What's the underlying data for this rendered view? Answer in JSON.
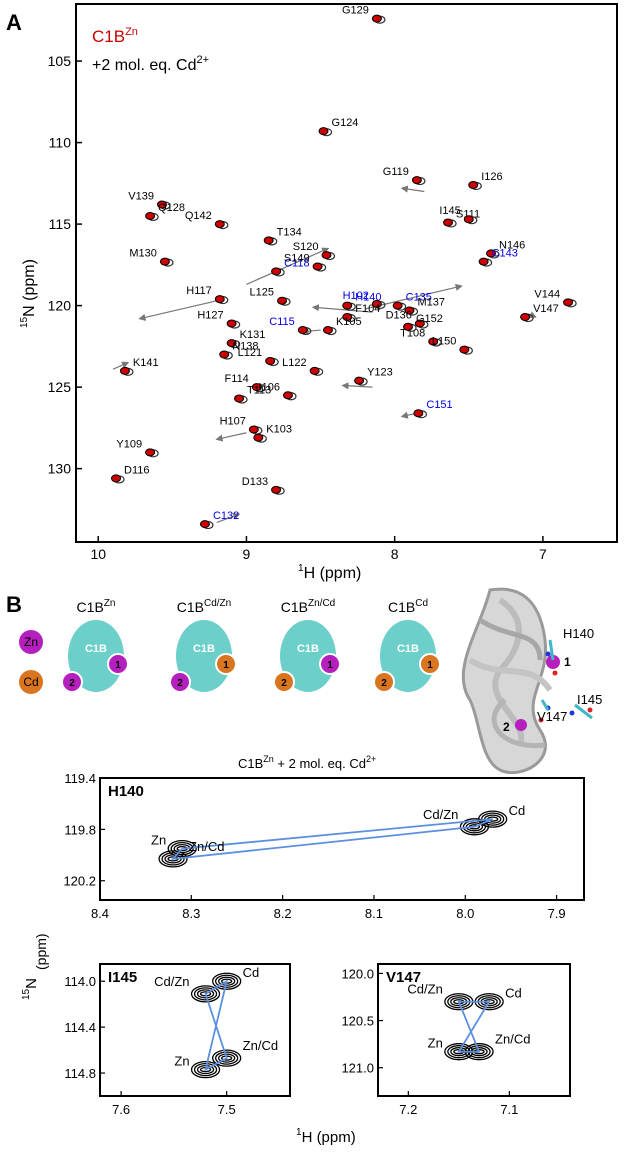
{
  "figure": {
    "panel_a_label": "A",
    "panel_b_label": "B",
    "title_main": "C1B",
    "title_sup": "Zn",
    "subtitle_prefix": "+2 mol. eq. Cd",
    "subtitle_sup": "2+",
    "scheme_title_main": "C1B",
    "scheme_title_sup": "Zn",
    "scheme_title_suffix": " + 2 mol. eq. Cd",
    "scheme_title_suffix_sup": "2+",
    "ylabel_shared": "15N (ppm)",
    "xlabel_shared": "1H (ppm)"
  },
  "colors": {
    "red": "#cc0000",
    "blue": "#0000ee",
    "zn": "#b51fbd",
    "cd": "#d9741f",
    "teal": "#6ccfc9",
    "arrow": "#777777",
    "link": "#5b8fe0"
  },
  "legend": {
    "zn": "Zn",
    "cd": "Cd"
  },
  "states": [
    {
      "name": "C1B",
      "sup": "Zn",
      "pocket": "C1B",
      "site1": "Zn",
      "site2": "Zn"
    },
    {
      "name": "C1B",
      "sup": "Cd/Zn",
      "pocket": "C1B",
      "site1": "Cd",
      "site2": "Zn"
    },
    {
      "name": "C1B",
      "sup": "Zn/Cd",
      "pocket": "C1B",
      "site1": "Zn",
      "site2": "Cd"
    },
    {
      "name": "C1B",
      "sup": "Cd",
      "pocket": "C1B",
      "site1": "Cd",
      "site2": "Cd"
    }
  ],
  "site_numbers": [
    "1",
    "2"
  ],
  "structure": {
    "labels": [
      "H140",
      "I145",
      "V147",
      "1",
      "2"
    ]
  },
  "chart_data": [
    {
      "type": "scatter",
      "xlabel": "1H (ppm)",
      "ylabel": "15N (ppm)",
      "xlim": [
        10.15,
        6.5
      ],
      "ylim": [
        134.5,
        101.5
      ],
      "xticks": [
        10,
        9,
        8,
        7
      ],
      "yticks": [
        105,
        110,
        115,
        120,
        125,
        130
      ],
      "series": [
        {
          "name": "C1BZn",
          "color": "#cc0000"
        },
        {
          "name": "+2 mol. eq. Cd2+",
          "color": "#222222"
        }
      ],
      "peaks": [
        {
          "label": "G129",
          "x": 8.12,
          "y": 102.4,
          "c": "k"
        },
        {
          "label": "G124",
          "x": 8.48,
          "y": 109.3,
          "c": "k"
        },
        {
          "label": "G119",
          "x": 7.85,
          "y": 112.3,
          "c": "k"
        },
        {
          "label": "I126",
          "x": 7.47,
          "y": 112.6,
          "c": "k"
        },
        {
          "label": "V139",
          "x": 9.57,
          "y": 113.8,
          "c": "k"
        },
        {
          "label": "Q128",
          "x": 9.65,
          "y": 114.5,
          "c": "k"
        },
        {
          "label": "Q142",
          "x": 9.18,
          "y": 115.0,
          "c": "k"
        },
        {
          "label": "S111",
          "x": 7.64,
          "y": 114.9,
          "c": "k"
        },
        {
          "label": "I145",
          "x": 7.5,
          "y": 114.7,
          "c": "k"
        },
        {
          "label": "T134",
          "x": 8.85,
          "y": 116.0,
          "c": "k"
        },
        {
          "label": "S120",
          "x": 8.46,
          "y": 116.9,
          "c": "k"
        },
        {
          "label": "N146",
          "x": 7.35,
          "y": 116.8,
          "c": "k"
        },
        {
          "label": "M130",
          "x": 9.55,
          "y": 117.3,
          "c": "k"
        },
        {
          "label": "C118",
          "x": 8.8,
          "y": 117.9,
          "c": "b"
        },
        {
          "label": "S149",
          "x": 8.52,
          "y": 117.6,
          "c": "k"
        },
        {
          "label": "C143",
          "x": 7.4,
          "y": 117.3,
          "c": "b"
        },
        {
          "label": "H117",
          "x": 9.18,
          "y": 119.6,
          "c": "k"
        },
        {
          "label": "H140",
          "x": 8.32,
          "y": 120.0,
          "c": "b"
        },
        {
          "label": "H102",
          "x": 8.12,
          "y": 119.9,
          "c": "b"
        },
        {
          "label": "C135",
          "x": 7.98,
          "y": 120.0,
          "c": "b"
        },
        {
          "label": "L125",
          "x": 8.76,
          "y": 119.7,
          "c": "k"
        },
        {
          "label": "V147",
          "x": 7.12,
          "y": 120.7,
          "c": "k"
        },
        {
          "label": "V144",
          "x": 6.83,
          "y": 119.8,
          "c": "k"
        },
        {
          "label": "M137",
          "x": 7.9,
          "y": 120.3,
          "c": "k"
        },
        {
          "label": "H127",
          "x": 9.1,
          "y": 121.1,
          "c": "k"
        },
        {
          "label": "F104",
          "x": 8.32,
          "y": 120.7,
          "c": "k"
        },
        {
          "label": "D136",
          "x": 7.83,
          "y": 121.1,
          "c": "k"
        },
        {
          "label": "K105",
          "x": 8.45,
          "y": 121.5,
          "c": "k"
        },
        {
          "label": "C115",
          "x": 8.62,
          "y": 121.5,
          "c": "b"
        },
        {
          "label": "K131",
          "x": 9.1,
          "y": 122.3,
          "c": "k"
        },
        {
          "label": "T108",
          "x": 7.74,
          "y": 122.2,
          "c": "k"
        },
        {
          "label": "G152",
          "x": 7.91,
          "y": 121.3,
          "c": "k"
        },
        {
          "label": "L150",
          "x": 7.53,
          "y": 122.7,
          "c": "k"
        },
        {
          "label": "N138",
          "x": 9.15,
          "y": 123.0,
          "c": "k"
        },
        {
          "label": "L121",
          "x": 8.84,
          "y": 123.4,
          "c": "k"
        },
        {
          "label": "K141",
          "x": 9.82,
          "y": 124.0,
          "c": "k"
        },
        {
          "label": "L122",
          "x": 8.54,
          "y": 124.0,
          "c": "k"
        },
        {
          "label": "Y123",
          "x": 8.24,
          "y": 124.6,
          "c": "k"
        },
        {
          "label": "F114",
          "x": 8.93,
          "y": 125.0,
          "c": "k"
        },
        {
          "label": "T113",
          "x": 9.05,
          "y": 125.7,
          "c": "k"
        },
        {
          "label": "I106",
          "x": 8.72,
          "y": 125.5,
          "c": "k"
        },
        {
          "label": "C151",
          "x": 7.84,
          "y": 126.6,
          "c": "b"
        },
        {
          "label": "H107",
          "x": 8.95,
          "y": 127.6,
          "c": "k"
        },
        {
          "label": "K103",
          "x": 8.92,
          "y": 128.1,
          "c": "k"
        },
        {
          "label": "Y109",
          "x": 9.65,
          "y": 129.0,
          "c": "k"
        },
        {
          "label": "D116",
          "x": 9.88,
          "y": 130.6,
          "c": "k"
        },
        {
          "label": "D133",
          "x": 8.8,
          "y": 131.3,
          "c": "k"
        },
        {
          "label": "C132",
          "x": 9.28,
          "y": 133.4,
          "c": "b"
        }
      ]
    },
    {
      "type": "scatter",
      "panel": "H140",
      "xlabel": "",
      "ylabel": "",
      "xlim": [
        8.4,
        7.87
      ],
      "ylim": [
        119.4,
        120.35
      ],
      "xticks": [
        8.4,
        8.3,
        8.2,
        8.1,
        8.0,
        7.9
      ],
      "yticks": [
        119.4,
        119.8,
        120.2
      ],
      "states": [
        {
          "label": "Zn",
          "x": 8.31,
          "y": 119.95
        },
        {
          "label": "Zn/Cd",
          "x": 8.32,
          "y": 120.03
        },
        {
          "label": "Cd/Zn",
          "x": 7.99,
          "y": 119.78
        },
        {
          "label": "Cd",
          "x": 7.97,
          "y": 119.72
        }
      ]
    },
    {
      "type": "scatter",
      "panel": "I145",
      "xlabel": "",
      "ylabel": "",
      "xlim": [
        7.62,
        7.44
      ],
      "ylim": [
        113.85,
        115.0
      ],
      "xticks": [
        7.6,
        7.5
      ],
      "yticks": [
        114.0,
        114.4,
        114.8
      ],
      "states": [
        {
          "label": "Cd",
          "x": 7.5,
          "y": 114.0
        },
        {
          "label": "Cd/Zn",
          "x": 7.52,
          "y": 114.11
        },
        {
          "label": "Zn/Cd",
          "x": 7.5,
          "y": 114.67
        },
        {
          "label": "Zn",
          "x": 7.52,
          "y": 114.77
        }
      ]
    },
    {
      "type": "scatter",
      "panel": "V147",
      "xlabel": "",
      "ylabel": "",
      "xlim": [
        7.23,
        7.04
      ],
      "ylim": [
        119.9,
        121.3
      ],
      "xticks": [
        7.2,
        7.1
      ],
      "yticks": [
        120.0,
        120.5,
        121.0
      ],
      "states": [
        {
          "label": "Cd/Zn",
          "x": 7.15,
          "y": 120.3
        },
        {
          "label": "Cd",
          "x": 7.12,
          "y": 120.3
        },
        {
          "label": "Zn",
          "x": 7.15,
          "y": 120.83
        },
        {
          "label": "Zn/Cd",
          "x": 7.13,
          "y": 120.83
        }
      ]
    }
  ]
}
